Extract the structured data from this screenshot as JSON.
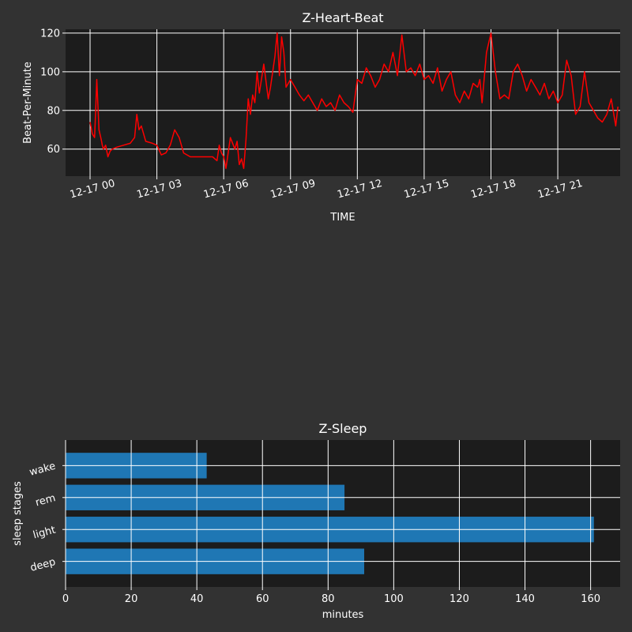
{
  "chart_data": [
    {
      "type": "line",
      "title": "Z-Heart-Beat",
      "xlabel": "TIME",
      "ylabel": "Beat-Per-Minute",
      "x_ticks": [
        "12-17 00",
        "12-17 03",
        "12-17 06",
        "12-17 09",
        "12-17 12",
        "12-17 15",
        "12-17 18",
        "12-17 21"
      ],
      "x_tick_hours": [
        0,
        3,
        6,
        9,
        12,
        15,
        18,
        21
      ],
      "xlim_hours": [
        -1.1,
        23.8
      ],
      "y_ticks": [
        60,
        80,
        100,
        120
      ],
      "ylim": [
        46,
        122
      ],
      "grid": true,
      "line_color": "#ff0000",
      "series": [
        {
          "x_hours": [
            0.0,
            0.1,
            0.2,
            0.25,
            0.3,
            0.4,
            0.5,
            0.55,
            0.6,
            0.7,
            0.8,
            0.9,
            1.0,
            1.2,
            1.5,
            1.8,
            2.0,
            2.1,
            2.2,
            2.3,
            2.5,
            2.8,
            3.0,
            3.2,
            3.4,
            3.5,
            3.6,
            3.8,
            4.0,
            4.2,
            4.5,
            5.0,
            5.5,
            5.7,
            5.8,
            5.9,
            6.0,
            6.1,
            6.3,
            6.5,
            6.6,
            6.7,
            6.8,
            6.9,
            7.0,
            7.1,
            7.2,
            7.3,
            7.4,
            7.5,
            7.6,
            7.8,
            8.0,
            8.1,
            8.2,
            8.3,
            8.4,
            8.5,
            8.6,
            8.7,
            8.8,
            9.0,
            9.2,
            9.4,
            9.6,
            9.8,
            10.0,
            10.2,
            10.4,
            10.6,
            10.8,
            11.0,
            11.2,
            11.4,
            11.6,
            11.8,
            12.0,
            12.2,
            12.4,
            12.6,
            12.8,
            13.0,
            13.2,
            13.4,
            13.6,
            13.8,
            14.0,
            14.2,
            14.4,
            14.6,
            14.8,
            15.0,
            15.2,
            15.4,
            15.6,
            15.8,
            16.0,
            16.2,
            16.4,
            16.6,
            16.8,
            17.0,
            17.2,
            17.4,
            17.5,
            17.6,
            17.8,
            18.0,
            18.2,
            18.4,
            18.6,
            18.8,
            19.0,
            19.2,
            19.4,
            19.6,
            19.8,
            20.0,
            20.2,
            20.4,
            20.6,
            20.8,
            21.0,
            21.2,
            21.4,
            21.6,
            21.8,
            22.0,
            22.2,
            22.4,
            22.6,
            22.8,
            23.0,
            23.2,
            23.4,
            23.6,
            23.7
          ],
          "bpm": [
            74,
            68,
            66,
            80,
            96,
            70,
            65,
            62,
            60,
            62,
            56,
            59,
            60,
            61,
            62,
            63,
            66,
            78,
            70,
            72,
            64,
            63,
            62,
            57,
            58,
            60,
            62,
            70,
            66,
            58,
            56,
            56,
            56,
            54,
            62,
            58,
            56,
            50,
            66,
            60,
            64,
            52,
            55,
            50,
            65,
            86,
            78,
            88,
            84,
            100,
            89,
            104,
            86,
            92,
            100,
            108,
            120,
            98,
            118,
            110,
            92,
            96,
            92,
            88,
            85,
            88,
            84,
            80,
            86,
            82,
            84,
            80,
            88,
            84,
            82,
            79,
            96,
            94,
            102,
            98,
            92,
            96,
            104,
            100,
            110,
            98,
            119,
            100,
            102,
            98,
            104,
            96,
            98,
            94,
            102,
            90,
            96,
            100,
            88,
            84,
            90,
            86,
            94,
            92,
            96,
            84,
            110,
            120,
            100,
            86,
            88,
            86,
            100,
            104,
            98,
            90,
            96,
            92,
            88,
            94,
            86,
            90,
            84,
            88,
            106,
            98,
            78,
            82,
            100,
            84,
            80,
            76,
            74,
            78,
            86,
            72,
            82
          ]
        }
      ]
    },
    {
      "type": "bar",
      "orientation": "horizontal",
      "title": "Z-Sleep",
      "xlabel": "minutes",
      "ylabel": "sleep stages",
      "categories": [
        "deep",
        "light",
        "rem",
        "wake"
      ],
      "values": [
        91,
        161,
        85,
        43
      ],
      "x_ticks": [
        0,
        20,
        40,
        60,
        80,
        100,
        120,
        140,
        160
      ],
      "xlim": [
        0,
        169
      ],
      "grid": true,
      "bar_color": "#1f77b4"
    }
  ],
  "theme": {
    "figure_bg": "#323232",
    "axes_bg": "#1c1c1c",
    "grid_color": "#ffffff",
    "text_color": "#ffffff"
  }
}
